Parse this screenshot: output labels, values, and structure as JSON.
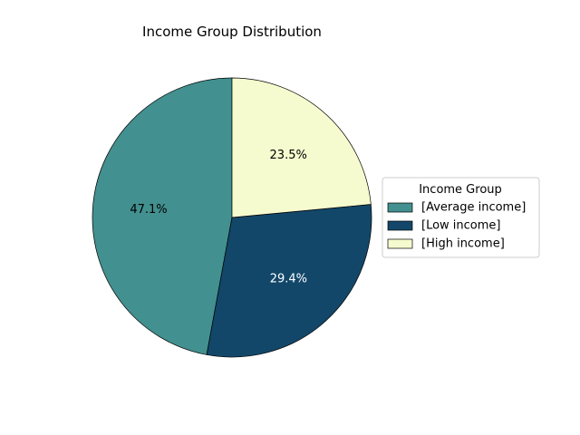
{
  "chart_data": {
    "type": "pie",
    "title": "Income Group Distribution",
    "legend_title": "Income Group",
    "legend_placement": "right",
    "start_angle_deg": 90,
    "direction": "counterclockwise",
    "slices": [
      {
        "label": "[Average income]",
        "percent": 47.1,
        "pct_label": "47.1%",
        "color": "#42908f",
        "text_color": "#000000"
      },
      {
        "label": "[Low income]",
        "percent": 29.4,
        "pct_label": "29.4%",
        "color": "#12476a",
        "text_color": "#ffffff"
      },
      {
        "label": "[High income]",
        "percent": 23.5,
        "pct_label": "23.5%",
        "color": "#f6fbcf",
        "text_color": "#000000"
      }
    ]
  }
}
